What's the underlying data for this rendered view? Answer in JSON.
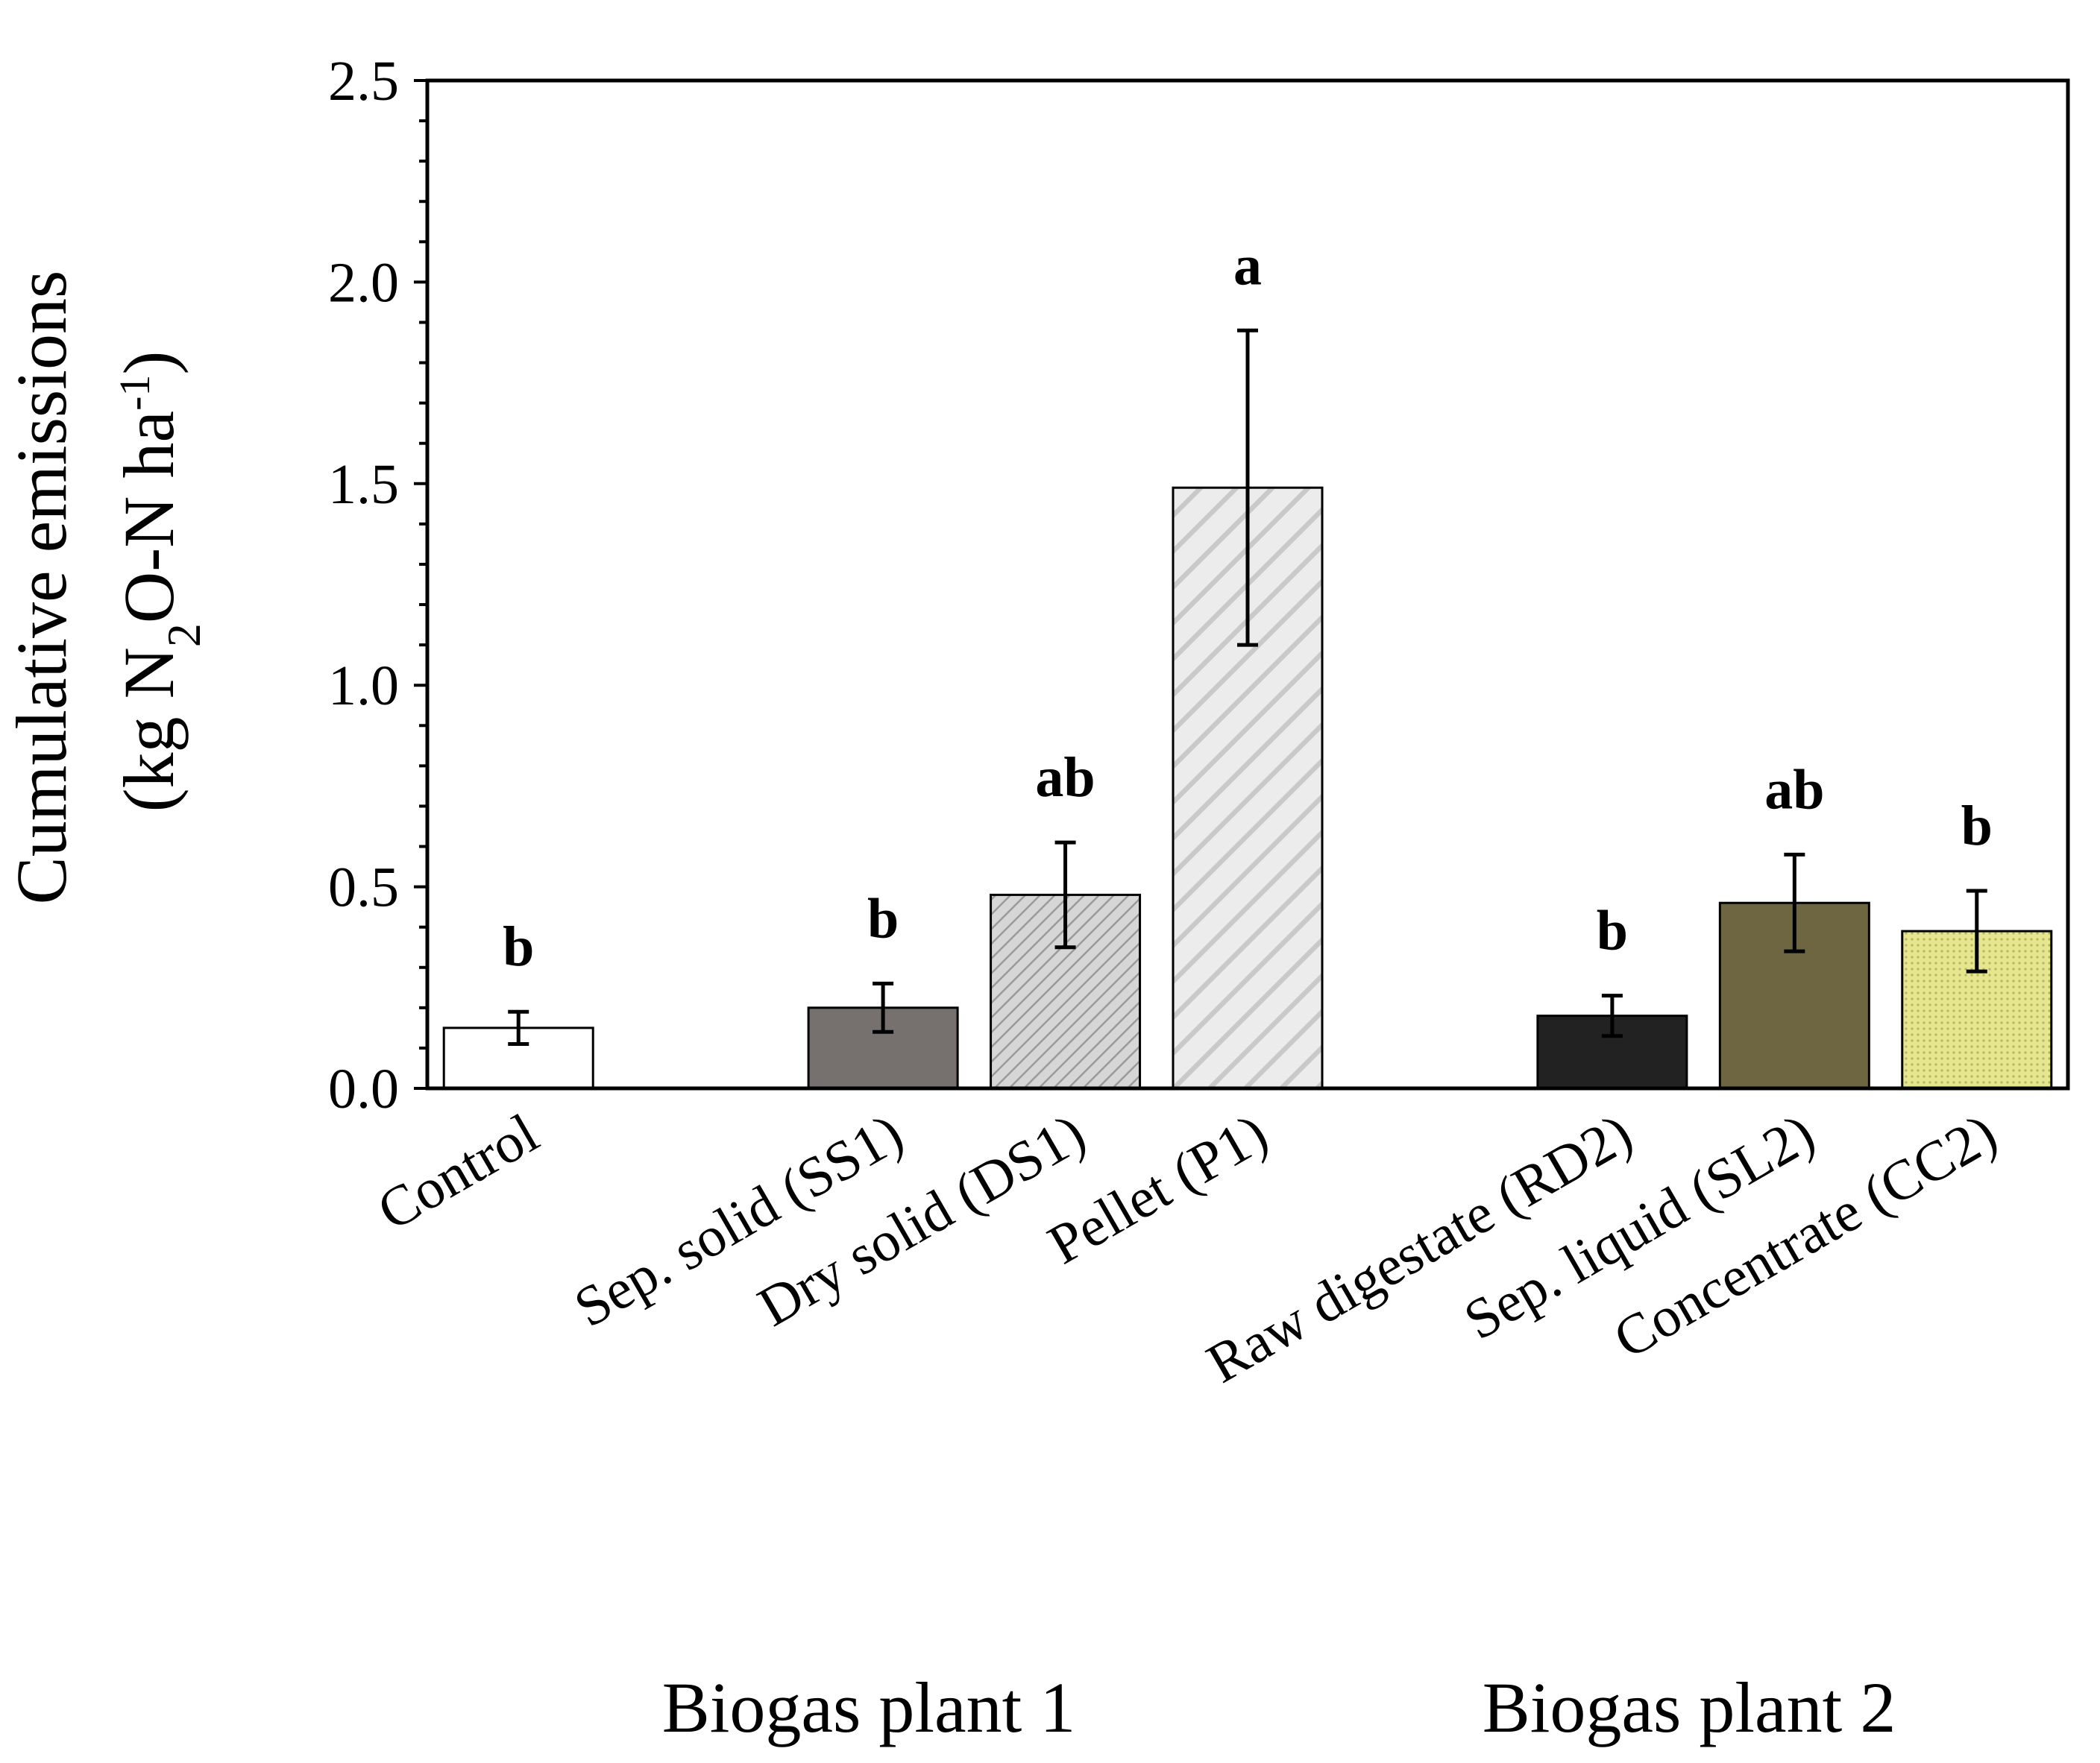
{
  "chart_data": {
    "type": "bar",
    "title": "",
    "xlabel": "",
    "ylabel": {
      "line1": "Cumulative emissions",
      "line2_parts": [
        "(kg N",
        "2",
        "O-N ha",
        "-1",
        ")"
      ]
    },
    "ylim": [
      0,
      2.5
    ],
    "yticks": [
      "0.0",
      "0.5",
      "1.0",
      "1.5",
      "2.0",
      "2.5"
    ],
    "yminor_step": 0.1,
    "grid": false,
    "legend": "none",
    "categories": [
      "Control",
      "",
      "Sep. solid (SS1)",
      "Dry solid (DS1)",
      "Pellet (P1)",
      "",
      "Raw digestate (RD2)",
      "Sep. liquid (SL2)",
      "Concentrate (CC2)"
    ],
    "values": [
      0.15,
      null,
      0.2,
      0.48,
      1.49,
      null,
      0.18,
      0.46,
      0.39
    ],
    "errors": [
      0.04,
      null,
      0.06,
      0.13,
      0.39,
      null,
      0.05,
      0.12,
      0.1
    ],
    "significance": [
      "b",
      "",
      "b",
      "ab",
      "a",
      "",
      "b",
      "ab",
      "b"
    ],
    "colors": [
      "#ffffff",
      "",
      "#76716e",
      "#cfcfcf",
      "#e8e8e8",
      "",
      "#222222",
      "#6e6640",
      "#e6e590"
    ],
    "patterns": [
      "none",
      "",
      "none",
      "fine-hatch",
      "wide-hatch",
      "",
      "none",
      "none",
      "dots"
    ],
    "groups": [
      {
        "label": "Biogas plant 1"
      },
      {
        "label": "Biogas plant 2"
      }
    ]
  }
}
